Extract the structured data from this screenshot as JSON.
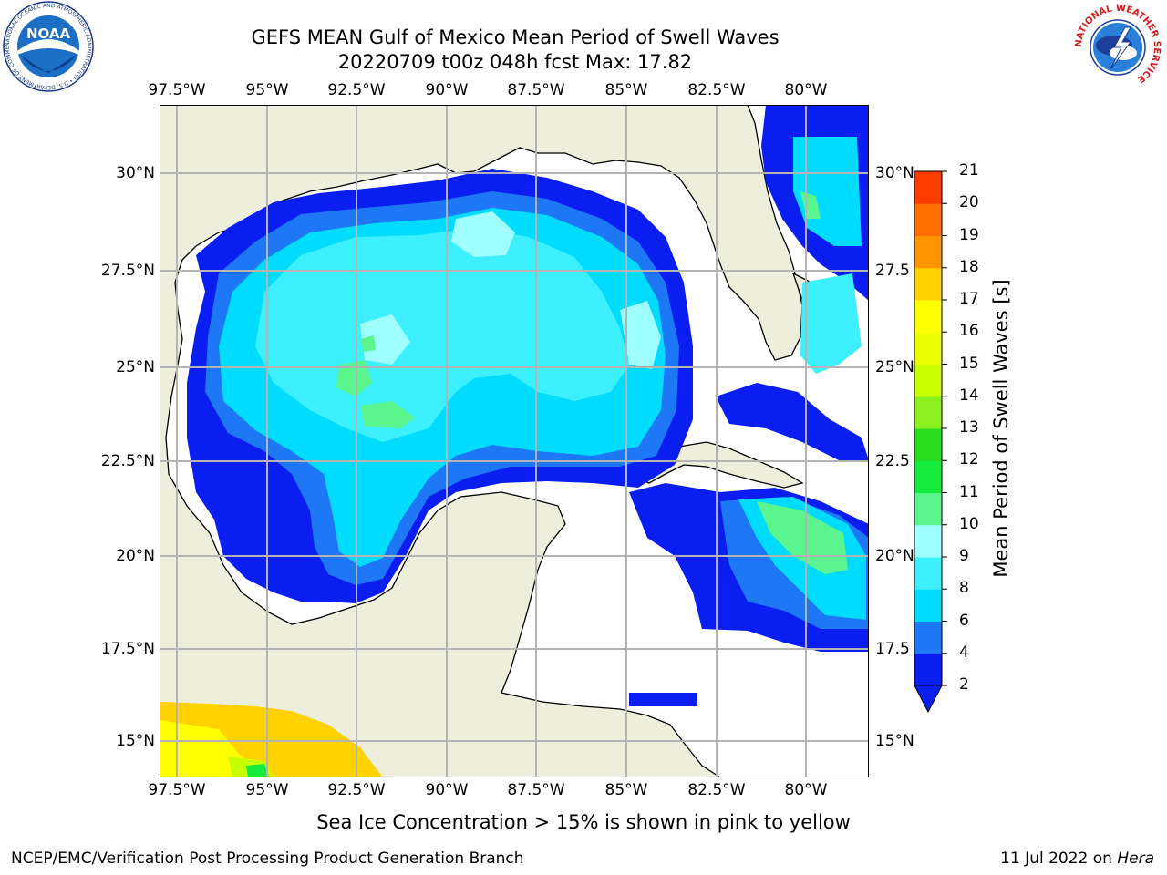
{
  "title": "GEFS MEAN Gulf of Mexico Mean Period of Swell Waves",
  "subtitle": "20220709 t00z 048h fcst   Max: 17.82",
  "lon_labels": [
    "97.5°W",
    "95°W",
    "92.5°W",
    "90°W",
    "87.5°W",
    "85°W",
    "82.5°W",
    "80°W"
  ],
  "lat_labels_left": [
    "30°N",
    "27.5°N",
    "25°N",
    "22.5°N",
    "20°N",
    "17.5°N",
    "15°N"
  ],
  "lat_labels_right": [
    "30°N",
    "27.5",
    "25°N",
    "22.5",
    "20°N",
    "17.5",
    "15°N"
  ],
  "colorbar": {
    "label": "Mean Period of Swell Waves [s]",
    "ticks": [
      "2",
      "4",
      "6",
      "8",
      "9",
      "10",
      "11",
      "12",
      "13",
      "14",
      "15",
      "16",
      "17",
      "18",
      "19",
      "20",
      "21"
    ],
    "colors": [
      "#0a1ef2",
      "#1e78f5",
      "#00dcff",
      "#3cf0ff",
      "#a0ffff",
      "#5af58c",
      "#14eb3c",
      "#28dc1e",
      "#8cf01e",
      "#c8ff00",
      "#eeff00",
      "#ffff00",
      "#ffd200",
      "#ff9600",
      "#ff6e00",
      "#ff3c00",
      "#ff1400"
    ]
  },
  "legend_note": "Sea Ice Concentration > 15% is shown in pink to yellow",
  "footer_left": "NCEP/EMC/Verification Post Processing Product Generation Branch",
  "footer_right_prefix": "11 Jul 2022 on ",
  "footer_right_host": "Hera",
  "logos": {
    "noaa": "NOAA",
    "noaa_ring": "NATIONAL OCEANIC AND ATMOSPHERIC ADMINISTRATION • U.S. DEPARTMENT OF COMMERCE •",
    "nws_ring": "NATIONAL WEATHER SERVICE"
  },
  "colors": {
    "land": "#eeeedd",
    "grid": "#b4b4b4"
  }
}
